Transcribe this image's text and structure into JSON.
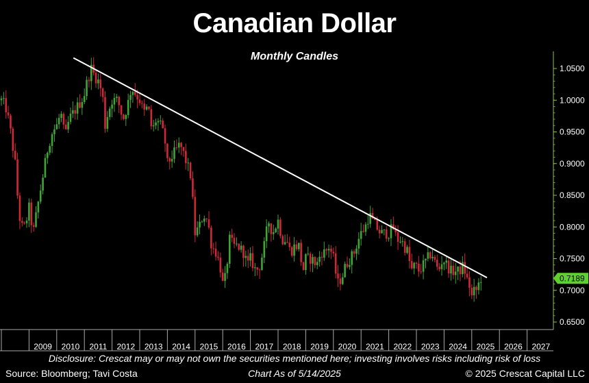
{
  "chart_data": {
    "type": "candlestick",
    "title": "Canadian Dollar",
    "subtitle": "Monthly Candles",
    "yaxis_side": "right",
    "ylim": [
      0.64,
      1.08
    ],
    "y_ticks": [
      "1.0500",
      "1.0000",
      "0.9500",
      "0.9000",
      "0.8500",
      "0.8000",
      "0.7500",
      "0.7000",
      "0.6500"
    ],
    "x_ticks": [
      "2009",
      "2010",
      "2011",
      "2012",
      "2013",
      "2014",
      "2015",
      "2016",
      "2017",
      "2018",
      "2019",
      "2020",
      "2021",
      "2022",
      "2023",
      "2024",
      "2025",
      "2026",
      "2027"
    ],
    "x_range": [
      2008.0,
      2028.0
    ],
    "last_price": "0.7189",
    "colors": {
      "up": "#3fa535",
      "down": "#d0273a",
      "trendline": "#ffffff",
      "last_price_badge": "#5fd12e",
      "axis": "#8ec63f"
    },
    "close_path": [
      [
        2008.0,
        1.0
      ],
      [
        2008.15,
        0.99
      ],
      [
        2008.3,
        0.96
      ],
      [
        2008.5,
        0.9
      ],
      [
        2008.6,
        0.84
      ],
      [
        2008.7,
        0.8
      ],
      [
        2008.85,
        0.8
      ],
      [
        2009.0,
        0.83
      ],
      [
        2009.15,
        0.79
      ],
      [
        2009.3,
        0.83
      ],
      [
        2009.5,
        0.88
      ],
      [
        2009.7,
        0.93
      ],
      [
        2009.85,
        0.95
      ],
      [
        2010.0,
        0.96
      ],
      [
        2010.15,
        0.98
      ],
      [
        2010.3,
        0.94
      ],
      [
        2010.45,
        0.97
      ],
      [
        2010.6,
        0.98
      ],
      [
        2010.75,
        0.99
      ],
      [
        2010.9,
        1.0
      ],
      [
        2011.0,
        1.01
      ],
      [
        2011.1,
        1.03
      ],
      [
        2011.25,
        1.05
      ],
      [
        2011.35,
        1.04
      ],
      [
        2011.5,
        1.03
      ],
      [
        2011.65,
        1.01
      ],
      [
        2011.75,
        0.96
      ],
      [
        2011.85,
        0.98
      ],
      [
        2012.0,
        1.0
      ],
      [
        2012.2,
        1.0
      ],
      [
        2012.4,
        0.97
      ],
      [
        2012.55,
        0.99
      ],
      [
        2012.7,
        1.02
      ],
      [
        2012.85,
        1.01
      ],
      [
        2013.0,
        1.0
      ],
      [
        2013.15,
        0.98
      ],
      [
        2013.3,
        0.99
      ],
      [
        2013.45,
        0.95
      ],
      [
        2013.6,
        0.97
      ],
      [
        2013.75,
        0.96
      ],
      [
        2013.9,
        0.94
      ],
      [
        2014.0,
        0.9
      ],
      [
        2014.15,
        0.91
      ],
      [
        2014.3,
        0.92
      ],
      [
        2014.45,
        0.93
      ],
      [
        2014.55,
        0.92
      ],
      [
        2014.7,
        0.9
      ],
      [
        2014.85,
        0.88
      ],
      [
        2015.0,
        0.79
      ],
      [
        2015.15,
        0.8
      ],
      [
        2015.3,
        0.82
      ],
      [
        2015.45,
        0.81
      ],
      [
        2015.6,
        0.77
      ],
      [
        2015.75,
        0.76
      ],
      [
        2015.9,
        0.74
      ],
      [
        2016.0,
        0.71
      ],
      [
        2016.1,
        0.72
      ],
      [
        2016.25,
        0.78
      ],
      [
        2016.4,
        0.77
      ],
      [
        2016.55,
        0.77
      ],
      [
        2016.75,
        0.76
      ],
      [
        2016.9,
        0.74
      ],
      [
        2017.0,
        0.75
      ],
      [
        2017.2,
        0.73
      ],
      [
        2017.35,
        0.74
      ],
      [
        2017.5,
        0.77
      ],
      [
        2017.65,
        0.81
      ],
      [
        2017.8,
        0.79
      ],
      [
        2018.0,
        0.81
      ],
      [
        2018.15,
        0.78
      ],
      [
        2018.3,
        0.78
      ],
      [
        2018.45,
        0.76
      ],
      [
        2018.6,
        0.77
      ],
      [
        2018.75,
        0.77
      ],
      [
        2018.9,
        0.73
      ],
      [
        2019.0,
        0.75
      ],
      [
        2019.2,
        0.75
      ],
      [
        2019.4,
        0.74
      ],
      [
        2019.55,
        0.76
      ],
      [
        2019.7,
        0.76
      ],
      [
        2019.85,
        0.77
      ],
      [
        2020.0,
        0.75
      ],
      [
        2020.15,
        0.71
      ],
      [
        2020.3,
        0.72
      ],
      [
        2020.45,
        0.74
      ],
      [
        2020.6,
        0.75
      ],
      [
        2020.75,
        0.76
      ],
      [
        2020.9,
        0.78
      ],
      [
        2021.0,
        0.79
      ],
      [
        2021.15,
        0.8
      ],
      [
        2021.3,
        0.82
      ],
      [
        2021.4,
        0.81
      ],
      [
        2021.55,
        0.8
      ],
      [
        2021.7,
        0.79
      ],
      [
        2021.85,
        0.79
      ],
      [
        2022.0,
        0.79
      ],
      [
        2022.15,
        0.8
      ],
      [
        2022.3,
        0.78
      ],
      [
        2022.45,
        0.78
      ],
      [
        2022.55,
        0.77
      ],
      [
        2022.7,
        0.76
      ],
      [
        2022.8,
        0.73
      ],
      [
        2022.95,
        0.74
      ],
      [
        2023.1,
        0.73
      ],
      [
        2023.25,
        0.74
      ],
      [
        2023.4,
        0.75
      ],
      [
        2023.55,
        0.76
      ],
      [
        2023.7,
        0.74
      ],
      [
        2023.8,
        0.73
      ],
      [
        2023.95,
        0.75
      ],
      [
        2024.1,
        0.74
      ],
      [
        2024.25,
        0.73
      ],
      [
        2024.4,
        0.73
      ],
      [
        2024.55,
        0.73
      ],
      [
        2024.7,
        0.74
      ],
      [
        2024.8,
        0.72
      ],
      [
        2024.9,
        0.71
      ],
      [
        2025.0,
        0.69
      ],
      [
        2025.1,
        0.7
      ],
      [
        2025.2,
        0.7
      ],
      [
        2025.3,
        0.72
      ],
      [
        2025.37,
        0.7189
      ]
    ],
    "trendline": [
      [
        2011.0,
        1.07
      ],
      [
        2025.55,
        0.72
      ]
    ]
  },
  "footer": {
    "disclosure": "Disclosure: Crescat may or may not own the securities mentioned here; investing involves risks including risk of loss",
    "source": "Source: Bloomberg; Tavi Costa",
    "as_of": "Chart As of 5/14/2025",
    "copyright": "© 2025 Crescat Capital LLC"
  }
}
